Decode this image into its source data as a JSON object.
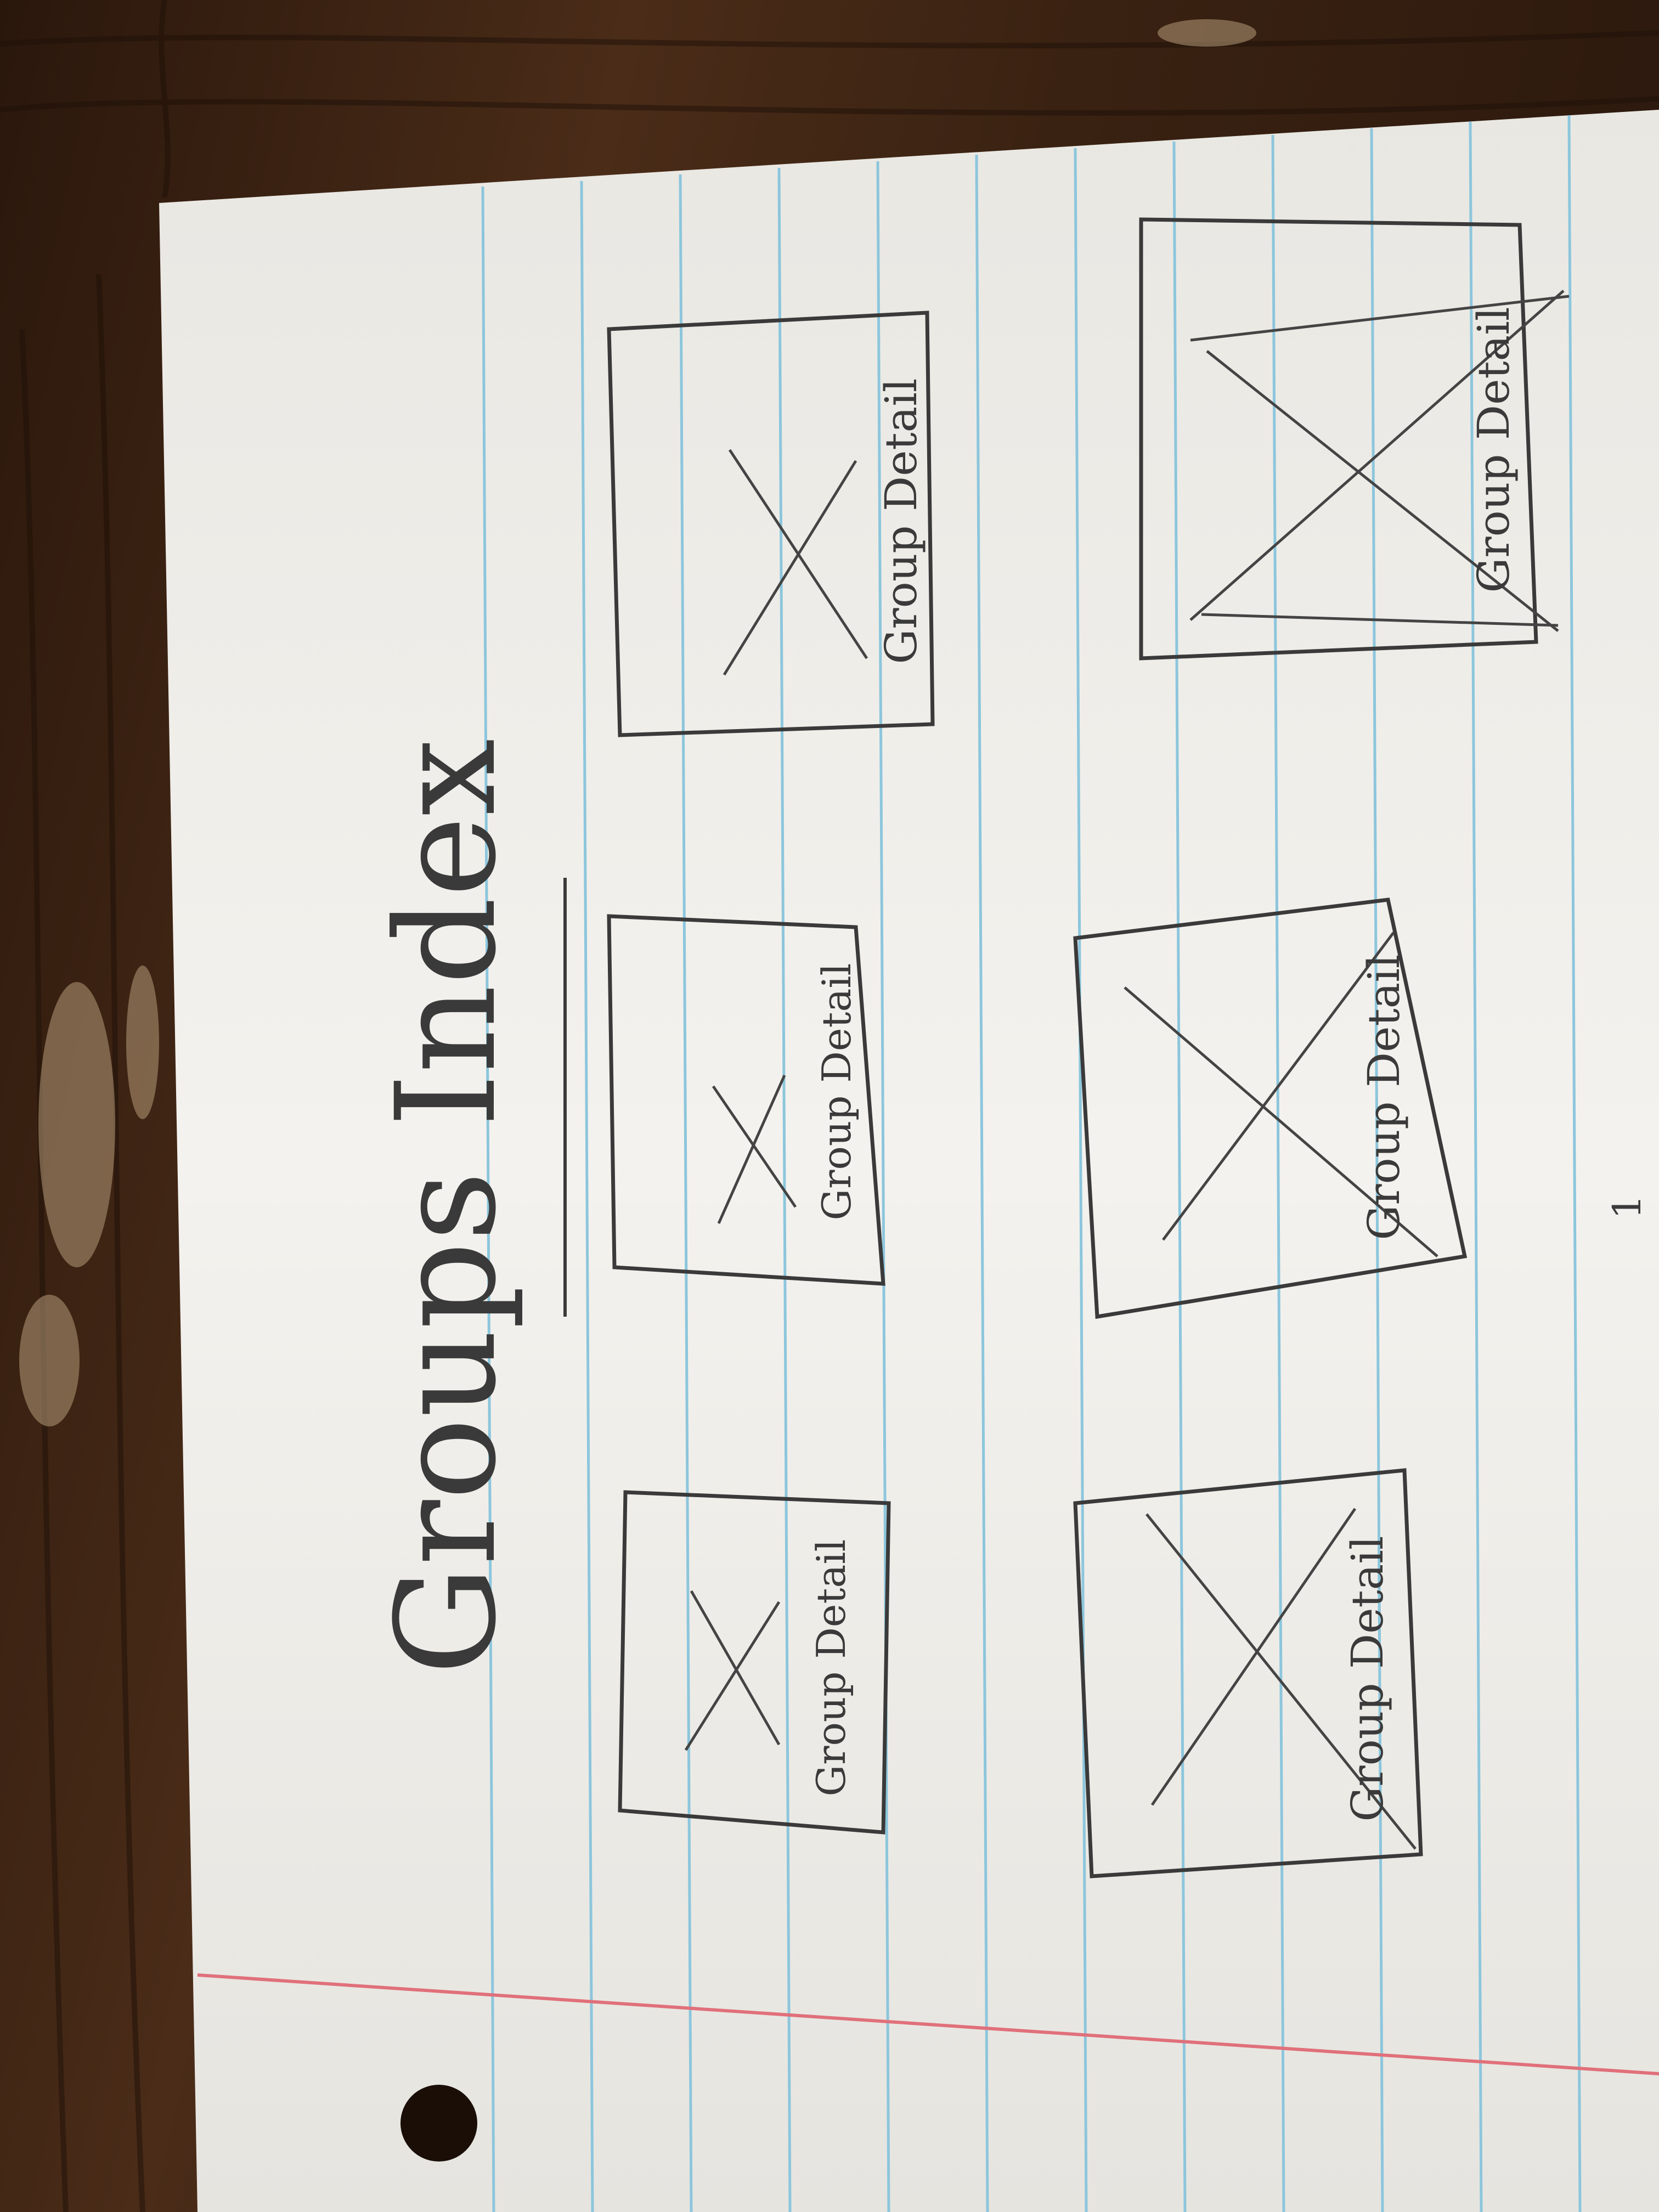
{
  "sketch": {
    "title": "Groups Index",
    "card_label": "Group Detail",
    "page_number": "1",
    "cards": [
      {
        "label": "Group Detail"
      },
      {
        "label": "Group Detail"
      },
      {
        "label": "Group Detail"
      },
      {
        "label": "Group Detail"
      },
      {
        "label": "Group Detail"
      },
      {
        "label": "Group Detail"
      }
    ]
  },
  "colors": {
    "table": "#3a2314",
    "paper": "#f4f2ee",
    "rule_line": "#8cc6dc",
    "margin_line": "#e0707a",
    "pencil": "#3a3a3a"
  }
}
